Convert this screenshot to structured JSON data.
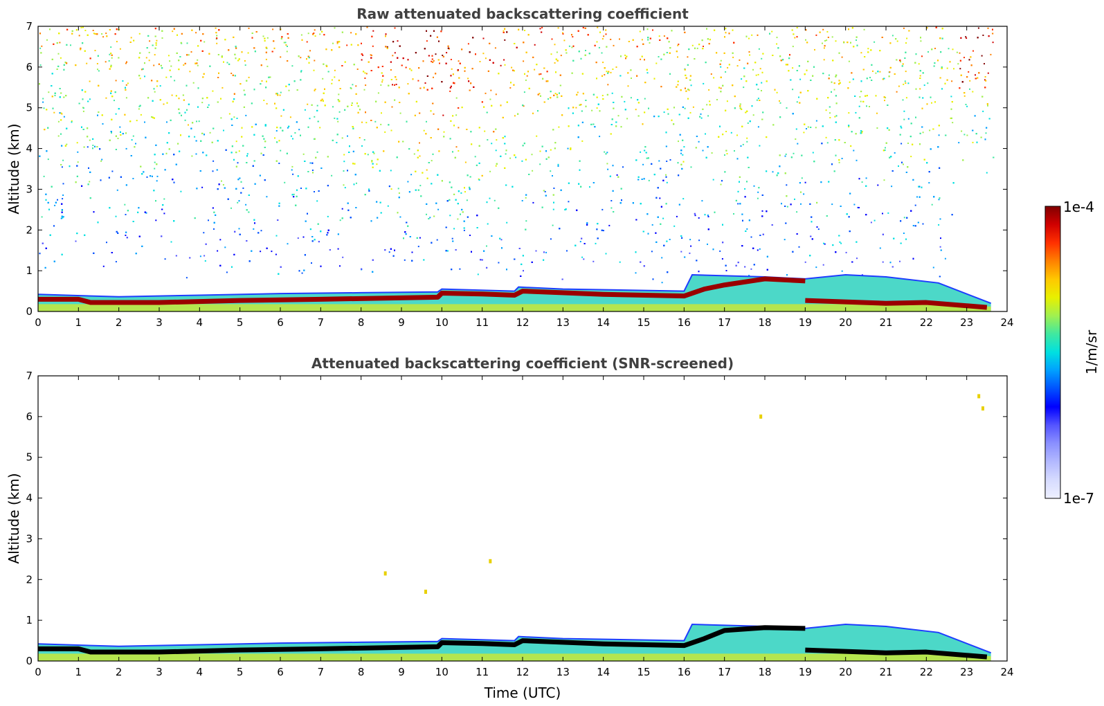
{
  "chart_data": [
    {
      "type": "heatmap",
      "title": "Raw attenuated backscattering coefficient",
      "xlabel": "",
      "ylabel": "Altitude (km)",
      "xlim": [
        0,
        24
      ],
      "ylim": [
        0,
        7
      ],
      "xticks": [
        0,
        1,
        2,
        3,
        4,
        5,
        6,
        7,
        8,
        9,
        10,
        11,
        12,
        13,
        14,
        15,
        16,
        17,
        18,
        19,
        20,
        21,
        22,
        23,
        24
      ],
      "yticks": [
        0,
        1,
        2,
        3,
        4,
        5,
        6,
        7
      ],
      "data_end_hour": 23.65,
      "boundary_layer_top_km": [
        [
          0,
          0.42
        ],
        [
          2,
          0.36
        ],
        [
          4,
          0.4
        ],
        [
          6,
          0.44
        ],
        [
          8,
          0.46
        ],
        [
          9.9,
          0.48
        ],
        [
          10,
          0.55
        ],
        [
          11.8,
          0.5
        ],
        [
          11.9,
          0.6
        ],
        [
          13,
          0.55
        ],
        [
          16,
          0.5
        ],
        [
          16.2,
          0.9
        ],
        [
          18,
          0.85
        ],
        [
          19,
          0.8
        ],
        [
          20,
          0.9
        ],
        [
          21,
          0.85
        ],
        [
          22.3,
          0.7
        ],
        [
          23.6,
          0.2
        ]
      ],
      "cloud_layer_km": [
        [
          0,
          0.3
        ],
        [
          1,
          0.3
        ],
        [
          1.3,
          0.22
        ],
        [
          3,
          0.22
        ],
        [
          5,
          0.27
        ],
        [
          7,
          0.3
        ],
        [
          9.9,
          0.35
        ],
        [
          10,
          0.45
        ],
        [
          11,
          0.43
        ],
        [
          11.8,
          0.4
        ],
        [
          12,
          0.5
        ],
        [
          14,
          0.42
        ],
        [
          16,
          0.38
        ],
        [
          16.5,
          0.55
        ],
        [
          17,
          0.65
        ],
        [
          18,
          0.8
        ],
        [
          19,
          0.75
        ],
        [
          19,
          0.27
        ],
        [
          21,
          0.2
        ],
        [
          22,
          0.22
        ],
        [
          23.5,
          0.1
        ]
      ],
      "features": {
        "high_noise_region_hours": [
          8,
          12
        ],
        "near_surface_clear_gap_hours": [
          22.4,
          23.5
        ]
      }
    },
    {
      "type": "heatmap",
      "title": "Attenuated backscattering coefficient (SNR-screened)",
      "xlabel": "Time (UTC)",
      "ylabel": "Altitude (km)",
      "xlim": [
        0,
        24
      ],
      "ylim": [
        0,
        7
      ],
      "xticks": [
        0,
        1,
        2,
        3,
        4,
        5,
        6,
        7,
        8,
        9,
        10,
        11,
        12,
        13,
        14,
        15,
        16,
        17,
        18,
        19,
        20,
        21,
        22,
        23,
        24
      ],
      "yticks": [
        0,
        1,
        2,
        3,
        4,
        5,
        6,
        7
      ],
      "data_end_hour": 23.65,
      "boundary_layer_top_km": [
        [
          0,
          0.42
        ],
        [
          2,
          0.36
        ],
        [
          4,
          0.4
        ],
        [
          6,
          0.44
        ],
        [
          8,
          0.46
        ],
        [
          9.9,
          0.48
        ],
        [
          10,
          0.55
        ],
        [
          11.8,
          0.5
        ],
        [
          11.9,
          0.6
        ],
        [
          13,
          0.55
        ],
        [
          16,
          0.5
        ],
        [
          16.2,
          0.9
        ],
        [
          18,
          0.85
        ],
        [
          19,
          0.8
        ],
        [
          20,
          0.9
        ],
        [
          21,
          0.85
        ],
        [
          22.3,
          0.7
        ],
        [
          23.6,
          0.2
        ]
      ],
      "detected_layer_km": [
        [
          0,
          0.3
        ],
        [
          1,
          0.3
        ],
        [
          1.3,
          0.22
        ],
        [
          3,
          0.22
        ],
        [
          5,
          0.27
        ],
        [
          7,
          0.3
        ],
        [
          9.9,
          0.35
        ],
        [
          10,
          0.45
        ],
        [
          11,
          0.43
        ],
        [
          11.8,
          0.4
        ],
        [
          12,
          0.5
        ],
        [
          14,
          0.42
        ],
        [
          16,
          0.38
        ],
        [
          16.5,
          0.55
        ],
        [
          17,
          0.75
        ],
        [
          18,
          0.82
        ],
        [
          19,
          0.8
        ],
        [
          19,
          0.27
        ],
        [
          21,
          0.2
        ],
        [
          22,
          0.22
        ],
        [
          23.5,
          0.1
        ]
      ],
      "isolated_points": [
        [
          23.3,
          6.5
        ],
        [
          23.4,
          6.2
        ],
        [
          17.9,
          6.0
        ],
        [
          8.6,
          2.15
        ],
        [
          11.2,
          2.45
        ],
        [
          9.6,
          1.7
        ]
      ]
    }
  ],
  "colorbar": {
    "top_label": "1e-4",
    "bottom_label": "1e-7",
    "label": "1/m/sr",
    "colors": [
      "#eef0ff",
      "#d6dbff",
      "#b3b9ff",
      "#8a90ff",
      "#5555ff",
      "#0000ff",
      "#0050ff",
      "#00a0ff",
      "#00e0e0",
      "#40e8a0",
      "#a0f050",
      "#e8f000",
      "#ffc800",
      "#ff8000",
      "#ff3000",
      "#d00000",
      "#800000"
    ]
  }
}
